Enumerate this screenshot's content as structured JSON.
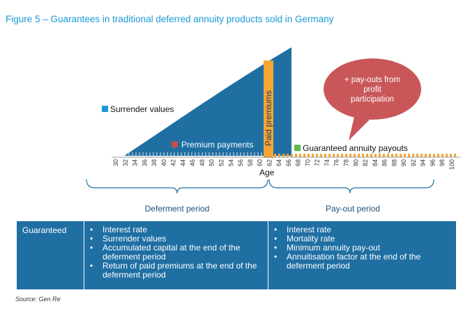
{
  "figure": {
    "title": "Figure 5 – Guarantees in traditional deferred annuity products sold in Germany",
    "axis_label": "Age",
    "ticks": [
      30,
      32,
      34,
      36,
      38,
      40,
      42,
      44,
      46,
      48,
      50,
      52,
      54,
      56,
      58,
      60,
      62,
      64,
      66,
      68,
      70,
      72,
      74,
      76,
      78,
      80,
      82,
      84,
      86,
      88,
      90,
      92,
      94,
      96,
      98,
      100
    ],
    "labels": {
      "surrender_values": "Surrender values",
      "premium_payments": "Premium payments",
      "paid_premiums": "Paid premiums",
      "guaranteed_payouts": "Guaranteed annuity payouts",
      "bubble_line1": "+ pay-outs from",
      "bubble_line2": "profit",
      "bubble_line3": "participation"
    },
    "periods": {
      "deferment": "Deferment period",
      "payout": "Pay-out period"
    },
    "colors": {
      "title": "#1a9ad6",
      "surrender": "#1f6fa3",
      "premium": "#c0504d",
      "paid_premiums": "#f4a534",
      "guaranteed": "#5eb84a",
      "bubble": "#c9575a",
      "table": "#1f6fa3"
    }
  },
  "table": {
    "header": "Guaranteed",
    "deferment_items": [
      "Interest rate",
      "Surrender values",
      "Accumulated capital at the end of the deferment period",
      "Return of paid premiums at the end of the deferment period"
    ],
    "payout_items": [
      "Interest rate",
      "Mortality rate",
      "Minimum annuity pay-out",
      "Annuitisation factor at the end of the deferment period"
    ]
  },
  "source": "Source: Gen Re"
}
